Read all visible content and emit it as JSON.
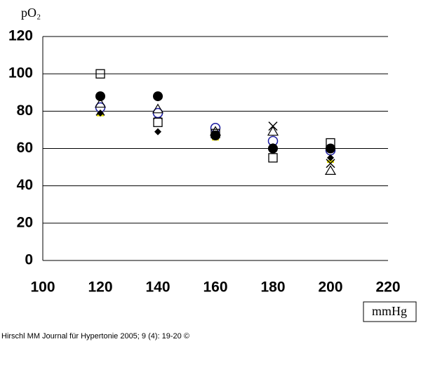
{
  "chart_data": {
    "type": "scatter",
    "y_label": "pO₂",
    "x_label": "mmHg",
    "footer": "Hirschl MM Journal für Hypertonie 2005; 9 (4): 19-20 ©",
    "x": [
      120,
      140,
      160,
      180,
      200
    ],
    "series": [
      {
        "marker": "square",
        "color": "#000000",
        "values": [
          100,
          74,
          68,
          55,
          63
        ]
      },
      {
        "marker": "circle-filled",
        "color": "#000000",
        "values": [
          88,
          88,
          67,
          60,
          60
        ]
      },
      {
        "marker": "triangle",
        "color": "#000000",
        "values": [
          84,
          81,
          69,
          69,
          48
        ]
      },
      {
        "marker": "diamond-filled",
        "color": "#000000",
        "values": [
          79,
          69,
          67,
          61,
          55
        ]
      },
      {
        "marker": "circle",
        "color": "#1a1aa0",
        "values": [
          82,
          79,
          71,
          64,
          59
        ]
      },
      {
        "marker": "cross",
        "color": "#000000",
        "values": [
          80,
          78,
          70,
          72,
          52
        ]
      },
      {
        "marker": "dot",
        "color": "#e8e000",
        "values": [
          78,
          79,
          65,
          62,
          53
        ]
      }
    ],
    "xlim": [
      100,
      220
    ],
    "xticks": [
      100,
      120,
      140,
      160,
      180,
      200,
      220
    ],
    "ylim": [
      0,
      120
    ],
    "yticks": [
      0,
      20,
      40,
      60,
      80,
      100,
      120
    ],
    "grid": true
  }
}
